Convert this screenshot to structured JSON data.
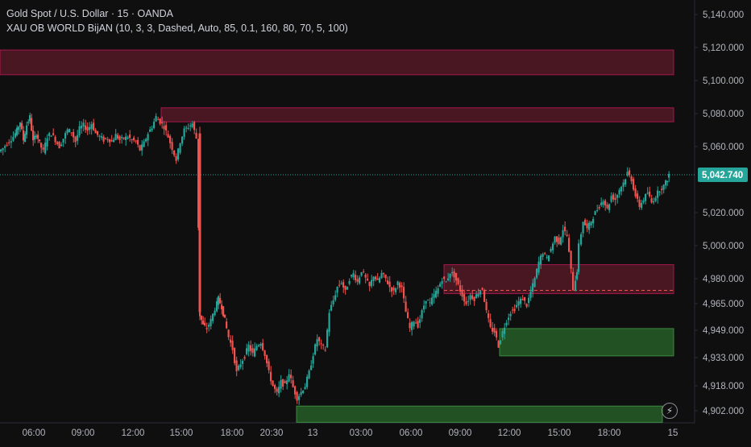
{
  "legend": {
    "symbol_line": "Gold Spot / U.S. Dollar · 15 · OANDA",
    "indicator_line": "XAU OB WORLD BijAN (10, 3, 3, Dashed, Auto, 85, 0.1, 160, 80, 70, 5, 100)"
  },
  "icons": {
    "bolt": "lightning-icon"
  },
  "colors": {
    "background": "#0f0f0f",
    "up": "#26a69a",
    "down": "#ef5350",
    "bear_zone": "#7a1f33",
    "bull_zone": "#2e7d32",
    "price_tag": "#26a69a"
  },
  "chart_data": {
    "type": "candlestick",
    "title": "Gold Spot / U.S. Dollar · 15 · OANDA",
    "x_tick_labels": [
      "06:00",
      "09:00",
      "12:00",
      "15:00",
      "18:00",
      "20:30",
      "13",
      "03:00",
      "06:00",
      "09:00",
      "12:00",
      "15:00",
      "18:00",
      "15"
    ],
    "y_tick_labels": [
      "5,140.000",
      "5,120.000",
      "5,100.000",
      "5,080.000",
      "5,060.000",
      "5,042.740",
      "5,020.000",
      "5,000.000",
      "4,980.000",
      "4,965.000",
      "4,949.000",
      "4,933.000",
      "4,918.000",
      "4,902.000"
    ],
    "ylim": [
      4900,
      5150
    ],
    "current_price": 5042.74,
    "current_price_label": "5,042.740",
    "grid": false,
    "zones": [
      {
        "kind": "bearish",
        "top": 5118.5,
        "bottom": 5103.5
      },
      {
        "kind": "bearish",
        "top": 5083.5,
        "bottom": 5075.0
      },
      {
        "kind": "bearish",
        "top": 4988.5,
        "bottom": 4971.0
      },
      {
        "kind": "bullish",
        "top": 4950.0,
        "bottom": 4934.0
      },
      {
        "kind": "bullish",
        "top": 4905.0,
        "bottom": 4895.0
      }
    ],
    "price_path": [
      [
        0,
        5057
      ],
      [
        5,
        5059
      ],
      [
        10,
        5062
      ],
      [
        18,
        5066
      ],
      [
        22,
        5070
      ],
      [
        26,
        5075
      ],
      [
        30,
        5064
      ],
      [
        34,
        5073
      ],
      [
        38,
        5078
      ],
      [
        42,
        5063
      ],
      [
        46,
        5068
      ],
      [
        50,
        5062
      ],
      [
        55,
        5057
      ],
      [
        60,
        5066
      ],
      [
        65,
        5068
      ],
      [
        70,
        5064
      ],
      [
        75,
        5060
      ],
      [
        80,
        5065
      ],
      [
        85,
        5070
      ],
      [
        90,
        5069
      ],
      [
        95,
        5063
      ],
      [
        100,
        5071
      ],
      [
        105,
        5073
      ],
      [
        110,
        5070
      ],
      [
        115,
        5074
      ],
      [
        120,
        5068
      ],
      [
        125,
        5066
      ],
      [
        130,
        5064
      ],
      [
        135,
        5065
      ],
      [
        140,
        5063
      ],
      [
        145,
        5067
      ],
      [
        150,
        5064
      ],
      [
        155,
        5065
      ],
      [
        160,
        5066
      ],
      [
        165,
        5064
      ],
      [
        170,
        5063
      ],
      [
        175,
        5058
      ],
      [
        180,
        5062
      ],
      [
        185,
        5068
      ],
      [
        190,
        5072
      ],
      [
        195,
        5078
      ],
      [
        200,
        5075
      ],
      [
        205,
        5072
      ],
      [
        210,
        5066
      ],
      [
        215,
        5059
      ],
      [
        220,
        5052
      ],
      [
        225,
        5063
      ],
      [
        230,
        5070
      ],
      [
        235,
        5072
      ],
      [
        240,
        5074
      ],
      [
        245,
        5065
      ],
      [
        249,
        4958
      ],
      [
        253,
        4952
      ],
      [
        258,
        4950
      ],
      [
        263,
        4955
      ],
      [
        268,
        4962
      ],
      [
        272,
        4968
      ],
      [
        276,
        4963
      ],
      [
        280,
        4955
      ],
      [
        285,
        4945
      ],
      [
        290,
        4938
      ],
      [
        295,
        4925
      ],
      [
        300,
        4930
      ],
      [
        305,
        4934
      ],
      [
        310,
        4940
      ],
      [
        315,
        4935
      ],
      [
        320,
        4940
      ],
      [
        325,
        4942
      ],
      [
        330,
        4935
      ],
      [
        335,
        4925
      ],
      [
        340,
        4918
      ],
      [
        345,
        4913
      ],
      [
        350,
        4920
      ],
      [
        355,
        4918
      ],
      [
        360,
        4925
      ],
      [
        365,
        4917
      ],
      [
        370,
        4910
      ],
      [
        375,
        4914
      ],
      [
        380,
        4918
      ],
      [
        385,
        4925
      ],
      [
        390,
        4935
      ],
      [
        395,
        4944
      ],
      [
        400,
        4940
      ],
      [
        405,
        4938
      ],
      [
        410,
        4960
      ],
      [
        415,
        4967
      ],
      [
        420,
        4975
      ],
      [
        425,
        4978
      ],
      [
        430,
        4972
      ],
      [
        435,
        4980
      ],
      [
        440,
        4983
      ],
      [
        445,
        4978
      ],
      [
        450,
        4985
      ],
      [
        455,
        4980
      ],
      [
        460,
        4975
      ],
      [
        465,
        4982
      ],
      [
        470,
        4978
      ],
      [
        475,
        4983
      ],
      [
        480,
        4980
      ],
      [
        485,
        4975
      ],
      [
        490,
        4972
      ],
      [
        495,
        4978
      ],
      [
        500,
        4974
      ],
      [
        505,
        4960
      ],
      [
        510,
        4950
      ],
      [
        515,
        4955
      ],
      [
        520,
        4952
      ],
      [
        525,
        4960
      ],
      [
        530,
        4968
      ],
      [
        535,
        4965
      ],
      [
        540,
        4970
      ],
      [
        545,
        4974
      ],
      [
        550,
        4980
      ],
      [
        555,
        4978
      ],
      [
        560,
        4984
      ],
      [
        565,
        4982
      ],
      [
        570,
        4976
      ],
      [
        575,
        4970
      ],
      [
        580,
        4965
      ],
      [
        585,
        4970
      ],
      [
        590,
        4968
      ],
      [
        595,
        4972
      ],
      [
        600,
        4974
      ],
      [
        605,
        4960
      ],
      [
        610,
        4950
      ],
      [
        615,
        4948
      ],
      [
        620,
        4940
      ],
      [
        625,
        4948
      ],
      [
        630,
        4955
      ],
      [
        635,
        4960
      ],
      [
        640,
        4962
      ],
      [
        645,
        4966
      ],
      [
        650,
        4968
      ],
      [
        655,
        4964
      ],
      [
        660,
        4972
      ],
      [
        665,
        4980
      ],
      [
        670,
        4990
      ],
      [
        675,
        4996
      ],
      [
        680,
        4992
      ],
      [
        685,
        4998
      ],
      [
        690,
        5005
      ],
      [
        695,
        5002
      ],
      [
        700,
        5010
      ],
      [
        705,
        5006
      ],
      [
        710,
        4985
      ],
      [
        713,
        4974
      ],
      [
        717,
        4985
      ],
      [
        720,
        5000
      ],
      [
        725,
        5015
      ],
      [
        730,
        5010
      ],
      [
        735,
        5015
      ],
      [
        740,
        5020
      ],
      [
        745,
        5024
      ],
      [
        750,
        5028
      ],
      [
        755,
        5022
      ],
      [
        760,
        5030
      ],
      [
        765,
        5028
      ],
      [
        770,
        5034
      ],
      [
        775,
        5038
      ],
      [
        780,
        5044
      ],
      [
        785,
        5040
      ],
      [
        790,
        5030
      ],
      [
        795,
        5024
      ],
      [
        800,
        5028
      ],
      [
        805,
        5032
      ],
      [
        810,
        5026
      ],
      [
        815,
        5030
      ],
      [
        820,
        5034
      ],
      [
        825,
        5036
      ],
      [
        829,
        5040
      ],
      [
        832,
        5043
      ]
    ]
  }
}
